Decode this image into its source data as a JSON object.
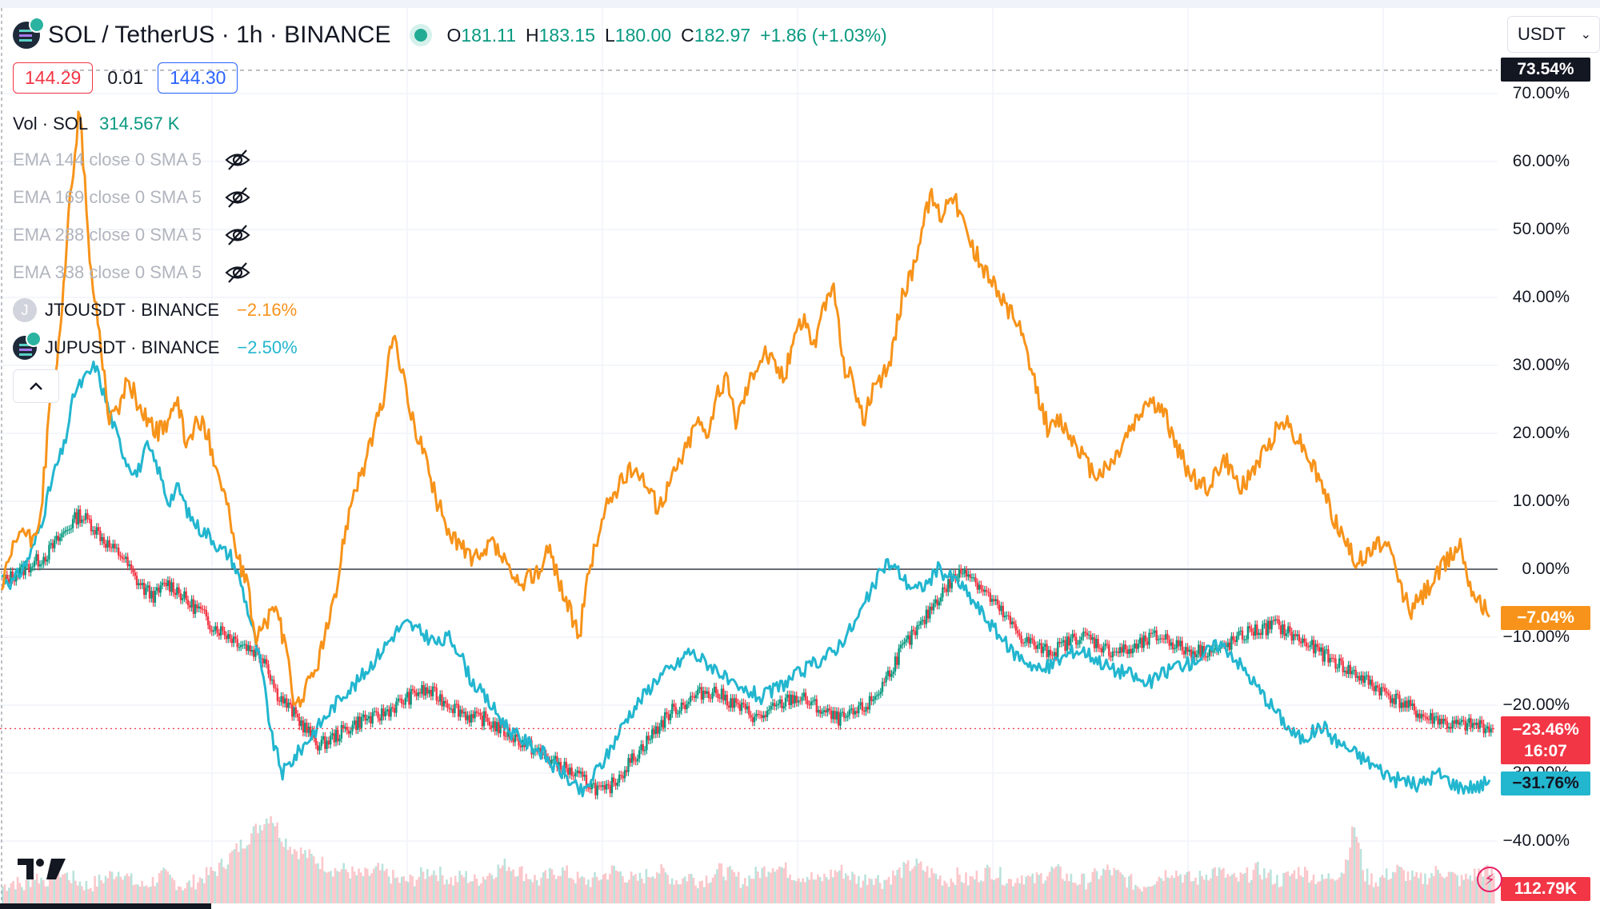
{
  "header": {
    "symbol_title": "SOL / TetherUS · 1h · BINANCE",
    "open_key": "O",
    "open": "181.11",
    "high_key": "H",
    "high": "183.15",
    "low_key": "L",
    "low": "180.00",
    "close_key": "C",
    "close": "182.97",
    "change": "+1.86 (+1.03%)"
  },
  "price_boxes": {
    "sell": "144.29",
    "spread": "0.01",
    "buy": "144.30"
  },
  "volume": {
    "label": "Vol · SOL",
    "value": "314.567 K"
  },
  "indicators": [
    {
      "label": "EMA 144 close 0 SMA 5"
    },
    {
      "label": "EMA 169 close 0 SMA 5"
    },
    {
      "label": "EMA 288 close 0 SMA 5"
    },
    {
      "label": "EMA 338 close 0 SMA 5"
    }
  ],
  "comparisons": [
    {
      "icon_letter": "J",
      "name": "JTOUSDT · BINANCE",
      "change": "−2.16%",
      "color": "#f7931a"
    },
    {
      "name": "JUPUSDT · BINANCE",
      "change": "−2.50%",
      "color": "#22b6cf"
    }
  ],
  "currency_select": {
    "value": "USDT"
  },
  "price_tags": {
    "top": "73.54%",
    "jto": "−7.04%",
    "sol_pct": "−23.46%",
    "countdown": "16:07",
    "jup": "−31.76%",
    "vol": "112.79K"
  },
  "colors": {
    "up": "#089981",
    "down": "#f23645",
    "jto": "#f7931a",
    "jup": "#22b6cf"
  },
  "chart_data": {
    "type": "line",
    "y_unit": "%",
    "y_ticks": [
      70,
      60,
      50,
      40,
      30,
      20,
      10,
      0,
      -10,
      -20,
      -30,
      -40
    ],
    "y_tick_labels": [
      "70.00%",
      "60.00%",
      "50.00%",
      "40.00%",
      "30.00%",
      "20.00%",
      "10.00%",
      "0.00%",
      "−10.00%",
      "−20.00%",
      "−30.00%",
      "−40.00%"
    ],
    "ylim": [
      -45,
      77
    ],
    "grid": true,
    "series": [
      {
        "name": "JTOUSDT",
        "color": "#f7931a",
        "values": [
          -3,
          2,
          6,
          4,
          8,
          25,
          34,
          55,
          68,
          45,
          35,
          22,
          24,
          28,
          24,
          22,
          20,
          22,
          24,
          18,
          22,
          20,
          15,
          10,
          2,
          -2,
          -10,
          -8,
          -5,
          -12,
          -20,
          -18,
          -15,
          -10,
          -5,
          5,
          12,
          15,
          20,
          25,
          35,
          28,
          22,
          18,
          12,
          8,
          5,
          3,
          2,
          1,
          4,
          2,
          -1,
          -3,
          -1,
          0,
          3,
          -2,
          -6,
          -10,
          0,
          5,
          10,
          12,
          14,
          15,
          12,
          9,
          12,
          15,
          18,
          22,
          20,
          25,
          28,
          22,
          26,
          30,
          32,
          30,
          28,
          35,
          37,
          33,
          38,
          42,
          30,
          28,
          22,
          26,
          28,
          32,
          40,
          44,
          50,
          55,
          52,
          56,
          52,
          48,
          45,
          43,
          40,
          38,
          35,
          30,
          25,
          20,
          22,
          20,
          18,
          15,
          14,
          15,
          17,
          20,
          22,
          25,
          24,
          22,
          18,
          15,
          13,
          12,
          14,
          16,
          13,
          12,
          15,
          17,
          20,
          22,
          20,
          18,
          15,
          12,
          8,
          5,
          2,
          1,
          3,
          4,
          2,
          -3,
          -6,
          -4,
          -2,
          0,
          2,
          4,
          -2,
          -5,
          -7
        ]
      },
      {
        "name": "JUPUSDT",
        "color": "#22b6cf",
        "values": [
          -1,
          -2,
          0,
          3,
          8,
          14,
          18,
          26,
          28,
          30,
          25,
          20,
          16,
          14,
          18,
          15,
          10,
          12,
          8,
          6,
          5,
          3,
          2,
          -2,
          -8,
          -15,
          -25,
          -30,
          -28,
          -26,
          -24,
          -22,
          -20,
          -18,
          -17,
          -15,
          -13,
          -11,
          -9,
          -8,
          -9,
          -10,
          -11,
          -10,
          -12,
          -16,
          -18,
          -20,
          -22,
          -24,
          -25,
          -26,
          -27,
          -29,
          -30,
          -32,
          -33,
          -30,
          -28,
          -25,
          -22,
          -20,
          -18,
          -16,
          -15,
          -14,
          -12,
          -13,
          -14,
          -15,
          -17,
          -18,
          -18,
          -19,
          -18,
          -17,
          -16,
          -15,
          -14,
          -13,
          -12,
          -10,
          -8,
          -5,
          -2,
          1,
          0,
          -2,
          -3,
          -2,
          0,
          -1,
          -2,
          -4,
          -6,
          -8,
          -10,
          -12,
          -13,
          -14,
          -15,
          -14,
          -13,
          -12,
          -12,
          -13,
          -14,
          -15,
          -15,
          -16,
          -17,
          -16,
          -15,
          -14,
          -14,
          -13,
          -12,
          -11,
          -12,
          -14,
          -16,
          -18,
          -20,
          -22,
          -24,
          -25,
          -24,
          -23,
          -25,
          -26,
          -27,
          -28,
          -29,
          -30,
          -31,
          -31,
          -32,
          -31,
          -30,
          -31,
          -32,
          -32,
          -32,
          -31
        ]
      }
    ],
    "candles_series": {
      "name": "SOL / TetherUS",
      "values": [
        -2,
        -1,
        0,
        1,
        2,
        4,
        6,
        8,
        7,
        5,
        3,
        2,
        -1,
        -3,
        -4,
        -2,
        -3,
        -5,
        -6,
        -8,
        -9,
        -10,
        -11,
        -12,
        -13,
        -18,
        -20,
        -22,
        -24,
        -26,
        -25,
        -24,
        -23,
        -22,
        -22,
        -21,
        -20,
        -19,
        -18,
        -18,
        -19,
        -20,
        -21,
        -22,
        -22,
        -23,
        -24,
        -25,
        -26,
        -27,
        -28,
        -29,
        -30,
        -31,
        -32,
        -33,
        -31,
        -29,
        -27,
        -25,
        -23,
        -21,
        -20,
        -19,
        -18,
        -18,
        -19,
        -20,
        -21,
        -22,
        -21,
        -20,
        -19,
        -19,
        -20,
        -21,
        -22,
        -22,
        -21,
        -20,
        -18,
        -15,
        -12,
        -10,
        -8,
        -5,
        -3,
        -1,
        0,
        -2,
        -4,
        -6,
        -8,
        -10,
        -11,
        -12,
        -12,
        -11,
        -10,
        -10,
        -11,
        -12,
        -12,
        -12,
        -11,
        -10,
        -10,
        -11,
        -12,
        -12,
        -12,
        -12,
        -11,
        -10,
        -9,
        -9,
        -8,
        -9,
        -10,
        -11,
        -12,
        -13,
        -14,
        -15,
        -16,
        -17,
        -18,
        -19,
        -20,
        -21,
        -22,
        -22,
        -23,
        -23,
        -23,
        -23,
        -23.5
      ]
    },
    "volume": {
      "name": "Vol · SOL",
      "values": [
        3,
        4,
        3,
        5,
        4,
        6,
        5,
        4,
        3,
        4,
        5,
        6,
        4,
        3,
        4,
        5,
        4,
        3,
        4,
        5,
        6,
        8,
        10,
        12,
        14,
        16,
        12,
        10,
        9,
        8,
        7,
        6,
        6,
        5,
        5,
        6,
        5,
        4,
        4,
        5,
        6,
        5,
        4,
        5,
        4,
        5,
        6,
        7,
        6,
        5,
        4,
        5,
        6,
        5,
        4,
        4,
        5,
        6,
        5,
        4,
        5,
        6,
        5,
        4,
        5,
        4,
        5,
        6,
        5,
        4,
        5,
        6,
        7,
        6,
        5,
        5,
        4,
        5,
        6,
        5,
        4,
        5,
        4,
        5,
        6,
        7,
        6,
        5,
        4,
        5,
        4,
        5,
        6,
        5,
        4,
        5,
        4,
        5,
        6,
        5,
        4,
        4,
        5,
        6,
        5,
        4,
        3,
        4,
        5,
        6,
        5,
        4,
        5,
        6,
        5,
        4,
        5,
        6,
        5,
        4,
        5,
        6,
        5,
        4,
        5,
        6,
        14,
        5,
        4,
        5,
        6,
        5,
        4,
        5,
        6,
        5,
        4,
        5,
        6,
        5
      ]
    }
  }
}
